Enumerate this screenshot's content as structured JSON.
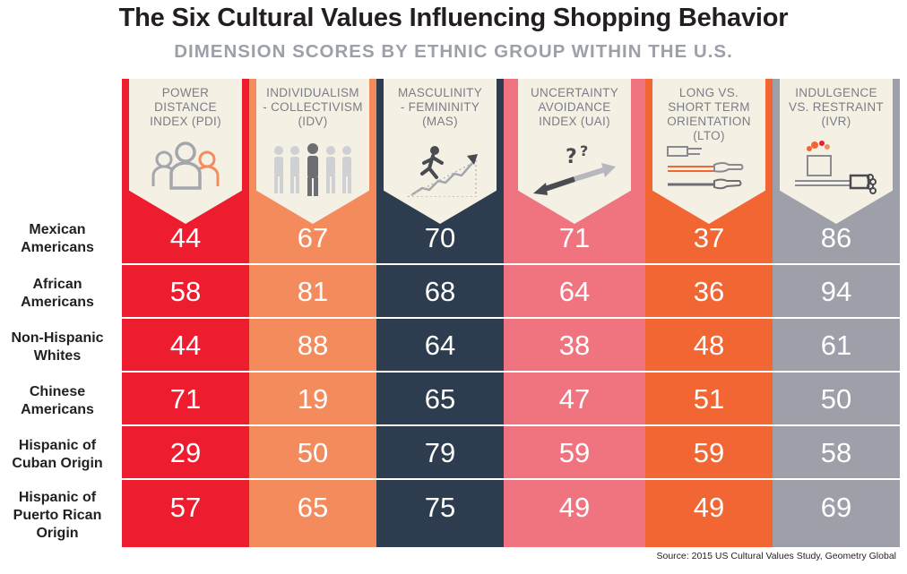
{
  "title": "The Six Cultural Values Influencing Shopping Behavior",
  "subtitle": "DIMENSION SCORES BY ETHNIC GROUP WITHIN THE U.S.",
  "source": "Source: 2015 US Cultural Values Study, Geometry Global",
  "colors": {
    "pdi": "#ed1c2e",
    "idv": "#f38b5c",
    "mas": "#2d3d4f",
    "uai": "#f07380",
    "lto": "#f26634",
    "ivr": "#9d9fa9",
    "card": "#f5f0e4"
  },
  "icons": [
    "people-group-icon",
    "individual-collective-icon",
    "climbing-stairs-icon",
    "uncertain-direction-icon",
    "pointing-hands-icon",
    "gift-bag-icon"
  ],
  "chart_data": {
    "type": "table",
    "title": "The Six Cultural Values Influencing Shopping Behavior",
    "subtitle": "DIMENSION SCORES BY ETHNIC GROUP WITHIN THE U.S.",
    "columns": [
      {
        "label": "POWER DISTANCE INDEX (PDI)",
        "lines": [
          "POWER",
          "DISTANCE",
          "INDEX (PDI)"
        ]
      },
      {
        "label": "INDIVIDUALISM - COLLECTIVISM (IDV)",
        "lines": [
          "INDIVIDUALISM",
          "- COLLECTIVISM",
          "(IDV)"
        ]
      },
      {
        "label": "MASCULINITY - FEMININITY (MAS)",
        "lines": [
          "MASCULINITY",
          "- FEMININITY",
          "(MAS)"
        ]
      },
      {
        "label": "UNCERTAINTY AVOIDANCE INDEX (UAI)",
        "lines": [
          "UNCERTAINTY",
          "AVOIDANCE",
          "INDEX (UAI)"
        ]
      },
      {
        "label": "LONG VS. SHORT TERM ORIENTATION (LTO)",
        "lines": [
          "LONG VS.",
          "SHORT TERM",
          "ORIENTATION",
          "(LTO)"
        ]
      },
      {
        "label": "INDULGENCE VS. RESTRAINT (IVR)",
        "lines": [
          "INDULGENCE",
          "VS. RESTRAINT",
          "(IVR)"
        ]
      }
    ],
    "rows": [
      {
        "label": "Mexican Americans",
        "lines": [
          "Mexican",
          "Americans"
        ],
        "values": [
          44,
          67,
          70,
          71,
          37,
          86
        ]
      },
      {
        "label": "African Americans",
        "lines": [
          "African",
          "Americans"
        ],
        "values": [
          58,
          81,
          68,
          64,
          36,
          94
        ]
      },
      {
        "label": "Non-Hispanic Whites",
        "lines": [
          "Non-Hispanic",
          "Whites"
        ],
        "values": [
          44,
          88,
          64,
          38,
          48,
          61
        ]
      },
      {
        "label": "Chinese Americans",
        "lines": [
          "Chinese",
          "Americans"
        ],
        "values": [
          71,
          19,
          65,
          47,
          51,
          50
        ]
      },
      {
        "label": "Hispanic of Cuban Origin",
        "lines": [
          "Hispanic of",
          "Cuban Origin"
        ],
        "values": [
          29,
          50,
          79,
          59,
          59,
          58
        ]
      },
      {
        "label": "Hispanic of Puerto Rican Origin",
        "lines": [
          "Hispanic of",
          "Puerto Rican",
          "Origin"
        ],
        "values": [
          57,
          65,
          75,
          49,
          49,
          69
        ]
      }
    ]
  }
}
